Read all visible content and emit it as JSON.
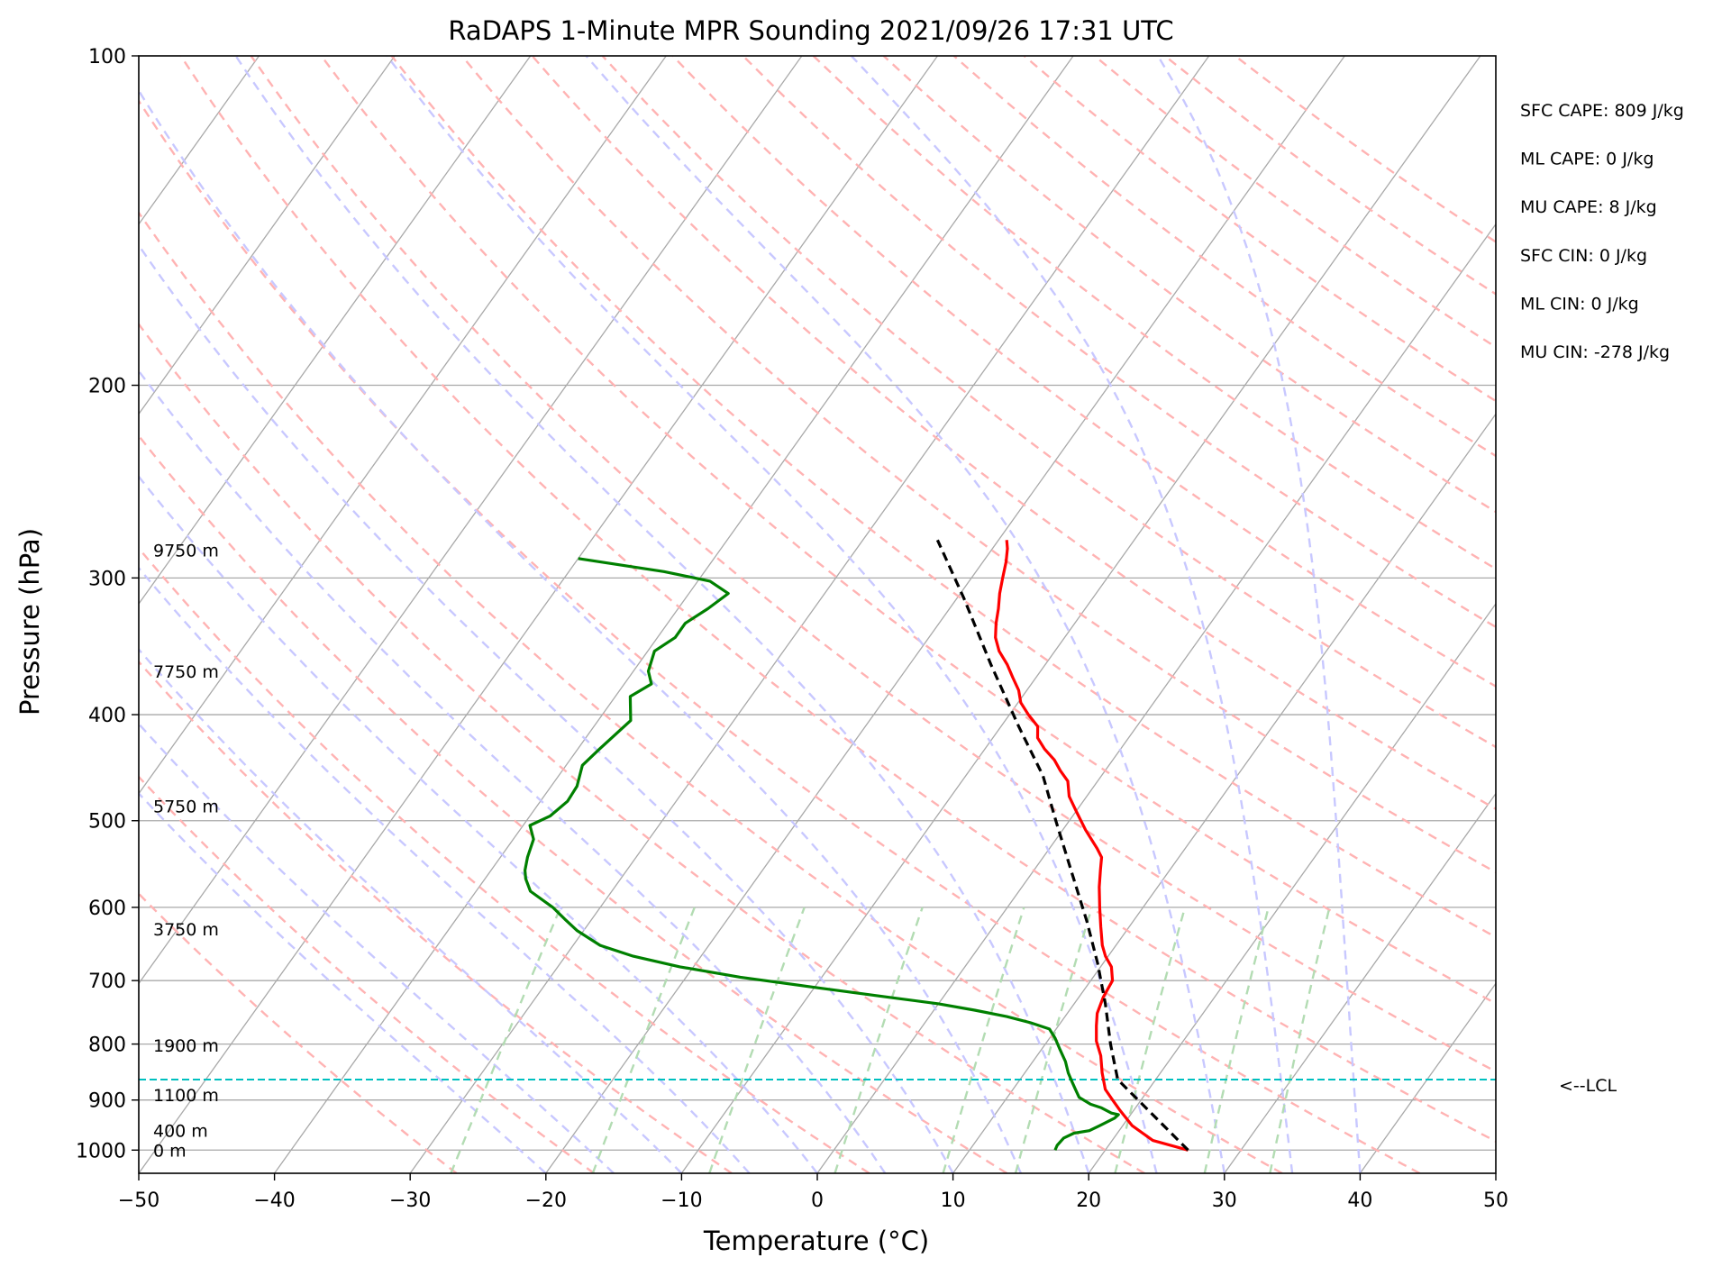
{
  "chart_data": {
    "type": "line",
    "title": "RaDAPS 1-Minute MPR Sounding 2021/09/26 17:31 UTC",
    "xlabel": "Temperature (°C)",
    "ylabel": "Pressure (hPa)",
    "xlim": [
      -50,
      50
    ],
    "ylim": [
      1050,
      100
    ],
    "y_scale": "log",
    "x_ticks": [
      {
        "value": -50,
        "label": "−50"
      },
      {
        "value": -40,
        "label": "−40"
      },
      {
        "value": -30,
        "label": "−30"
      },
      {
        "value": -20,
        "label": "−20"
      },
      {
        "value": -10,
        "label": "−10"
      },
      {
        "value": 0,
        "label": "0"
      },
      {
        "value": 10,
        "label": "10"
      },
      {
        "value": 20,
        "label": "20"
      },
      {
        "value": 30,
        "label": "30"
      },
      {
        "value": 40,
        "label": "40"
      },
      {
        "value": 50,
        "label": "50"
      }
    ],
    "y_ticks": [
      {
        "value": 100,
        "label": "100"
      },
      {
        "value": 200,
        "label": "200"
      },
      {
        "value": 300,
        "label": "300"
      },
      {
        "value": 400,
        "label": "400"
      },
      {
        "value": 500,
        "label": "500"
      },
      {
        "value": 600,
        "label": "600"
      },
      {
        "value": 700,
        "label": "700"
      },
      {
        "value": 800,
        "label": "800"
      },
      {
        "value": 900,
        "label": "900"
      },
      {
        "value": 1000,
        "label": "1000"
      }
    ],
    "grid": true,
    "skew": "skew-T",
    "series": [
      {
        "role": "temperature",
        "color": "#ff0000",
        "style": "solid",
        "points": [
          [
            26.1,
            1000
          ],
          [
            23.0,
            980
          ],
          [
            20.7,
            950
          ],
          [
            19.0,
            920
          ],
          [
            17.9,
            900
          ],
          [
            16.8,
            880
          ],
          [
            15.7,
            850
          ],
          [
            14.7,
            820
          ],
          [
            13.6,
            795
          ],
          [
            12.8,
            770
          ],
          [
            12.2,
            750
          ],
          [
            11.8,
            725
          ],
          [
            11.6,
            700
          ],
          [
            10.8,
            680
          ],
          [
            9.8,
            665
          ],
          [
            9.0,
            650
          ],
          [
            7.9,
            625
          ],
          [
            6.8,
            600
          ],
          [
            5.7,
            575
          ],
          [
            4.9,
            555
          ],
          [
            4.3,
            540
          ],
          [
            3.5,
            530
          ],
          [
            1.7,
            510
          ],
          [
            0,
            490
          ],
          [
            -1.3,
            475
          ],
          [
            -2.2,
            460
          ],
          [
            -3.3,
            450
          ],
          [
            -4.3,
            440
          ],
          [
            -5.6,
            430
          ],
          [
            -6.7,
            420
          ],
          [
            -7.3,
            410
          ],
          [
            -8.6,
            400
          ],
          [
            -9.8,
            390
          ],
          [
            -10.6,
            380
          ],
          [
            -11.7,
            370
          ],
          [
            -12.8,
            360
          ],
          [
            -14.1,
            350
          ],
          [
            -15.1,
            340
          ],
          [
            -15.8,
            330
          ],
          [
            -16.4,
            320
          ],
          [
            -17.1,
            310
          ],
          [
            -17.7,
            300
          ],
          [
            -18.3,
            290
          ],
          [
            -18.9,
            282
          ],
          [
            -19.4,
            277
          ]
        ]
      },
      {
        "role": "dewpoint",
        "color": "#008000",
        "style": "solid",
        "points": [
          [
            16.3,
            1000
          ],
          [
            16.2,
            990
          ],
          [
            16.3,
            975
          ],
          [
            16.8,
            965
          ],
          [
            17.8,
            960
          ],
          [
            18.3,
            950
          ],
          [
            19.0,
            935
          ],
          [
            19.1,
            928
          ],
          [
            18.5,
            925
          ],
          [
            17.5,
            915
          ],
          [
            16.5,
            908
          ],
          [
            15.3,
            895
          ],
          [
            14.6,
            880
          ],
          [
            13.9,
            865
          ],
          [
            13.2,
            850
          ],
          [
            12.4,
            830
          ],
          [
            11.4,
            810
          ],
          [
            10.4,
            790
          ],
          [
            9.5,
            775
          ],
          [
            7.8,
            765
          ],
          [
            5.7,
            755
          ],
          [
            3.0,
            745
          ],
          [
            0,
            735
          ],
          [
            -4.0,
            725
          ],
          [
            -10.0,
            710
          ],
          [
            -16.0,
            695
          ],
          [
            -21.0,
            680
          ],
          [
            -25.0,
            665
          ],
          [
            -28.0,
            650
          ],
          [
            -30.5,
            630
          ],
          [
            -32.0,
            615
          ],
          [
            -33.5,
            600
          ],
          [
            -36.0,
            580
          ],
          [
            -37.0,
            565
          ],
          [
            -37.5,
            555
          ],
          [
            -38.0,
            540
          ],
          [
            -38.5,
            520
          ],
          [
            -39.5,
            505
          ],
          [
            -38.5,
            495
          ],
          [
            -38.0,
            480
          ],
          [
            -38.1,
            465
          ],
          [
            -38.8,
            445
          ],
          [
            -38.4,
            430
          ],
          [
            -37.6,
            405
          ],
          [
            -38.9,
            385
          ],
          [
            -38.0,
            375
          ],
          [
            -38.9,
            365
          ],
          [
            -39.5,
            350
          ],
          [
            -38.7,
            340
          ],
          [
            -38.7,
            330
          ],
          [
            -37.8,
            320
          ],
          [
            -37.1,
            310
          ],
          [
            -39.1,
            302
          ],
          [
            -43.0,
            296
          ],
          [
            -50.0,
            288
          ]
        ]
      },
      {
        "role": "parcel",
        "color": "#000000",
        "style": "dashed",
        "points": [
          [
            26.1,
            1000
          ],
          [
            17.2,
            862
          ],
          [
            14.8,
            800
          ],
          [
            12.3,
            735
          ],
          [
            9.6,
            675
          ],
          [
            6.6,
            618
          ],
          [
            2.8,
            556
          ],
          [
            -1.0,
            500
          ],
          [
            -4.3,
            455
          ],
          [
            -8.7,
            410
          ],
          [
            -14.0,
            360
          ],
          [
            -19.5,
            313
          ],
          [
            -24.5,
            277
          ]
        ]
      }
    ],
    "lcl": {
      "pressure": 862,
      "label": "<--LCL",
      "color": "#00bfbf"
    },
    "height_labels": [
      {
        "label": "9750 m",
        "pressure": 283
      },
      {
        "label": "7750 m",
        "pressure": 365
      },
      {
        "label": "5750 m",
        "pressure": 485
      },
      {
        "label": "3750 m",
        "pressure": 628
      },
      {
        "label": "1900 m",
        "pressure": 802
      },
      {
        "label": "1100 m",
        "pressure": 890
      },
      {
        "label": "400 m",
        "pressure": 960
      },
      {
        "label": "0 m",
        "pressure": 1000
      }
    ],
    "annotations": [
      "SFC CAPE: 809 J/kg",
      "ML CAPE: 0 J/kg",
      "MU CAPE: 8 J/kg",
      "SFC CIN: 0 J/kg",
      "ML CIN: 0 J/kg",
      "MU CIN: -278 J/kg"
    ],
    "background_lines": {
      "isotherm_color": "#a9a9a9",
      "dry_adiabat_color": "#ffb3b3",
      "moist_adiabat_color": "#c8c8ff",
      "mixing_ratio_color": "#b3dcb3"
    }
  }
}
